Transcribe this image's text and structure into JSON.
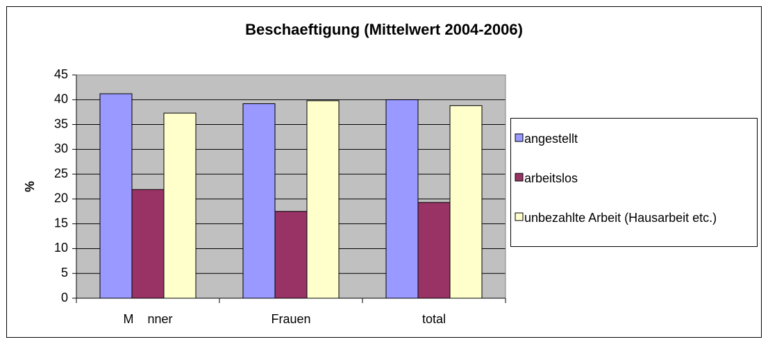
{
  "chart_data": {
    "type": "bar",
    "title": "Beschaeftigung (Mittelwert 2004-2006)",
    "y_label": "%",
    "categories": [
      "M    nner",
      "Frauen",
      "total"
    ],
    "series": [
      {
        "name": "angestellt",
        "color": "#9999ff",
        "values": [
          41.2,
          39.2,
          40.0
        ]
      },
      {
        "name": "arbeitslos",
        "color": "#993366",
        "values": [
          21.9,
          17.5,
          19.3
        ]
      },
      {
        "name": "unbezahlte Arbeit (Hausarbeit etc.)",
        "color": "#ffffcc",
        "values": [
          37.3,
          39.8,
          38.8
        ]
      }
    ],
    "ylim": [
      0,
      45
    ],
    "yticks": [
      0,
      5,
      10,
      15,
      20,
      25,
      30,
      35,
      40,
      45
    ],
    "grid": true,
    "plot_background": "#c0c0c0",
    "legend": "right"
  }
}
